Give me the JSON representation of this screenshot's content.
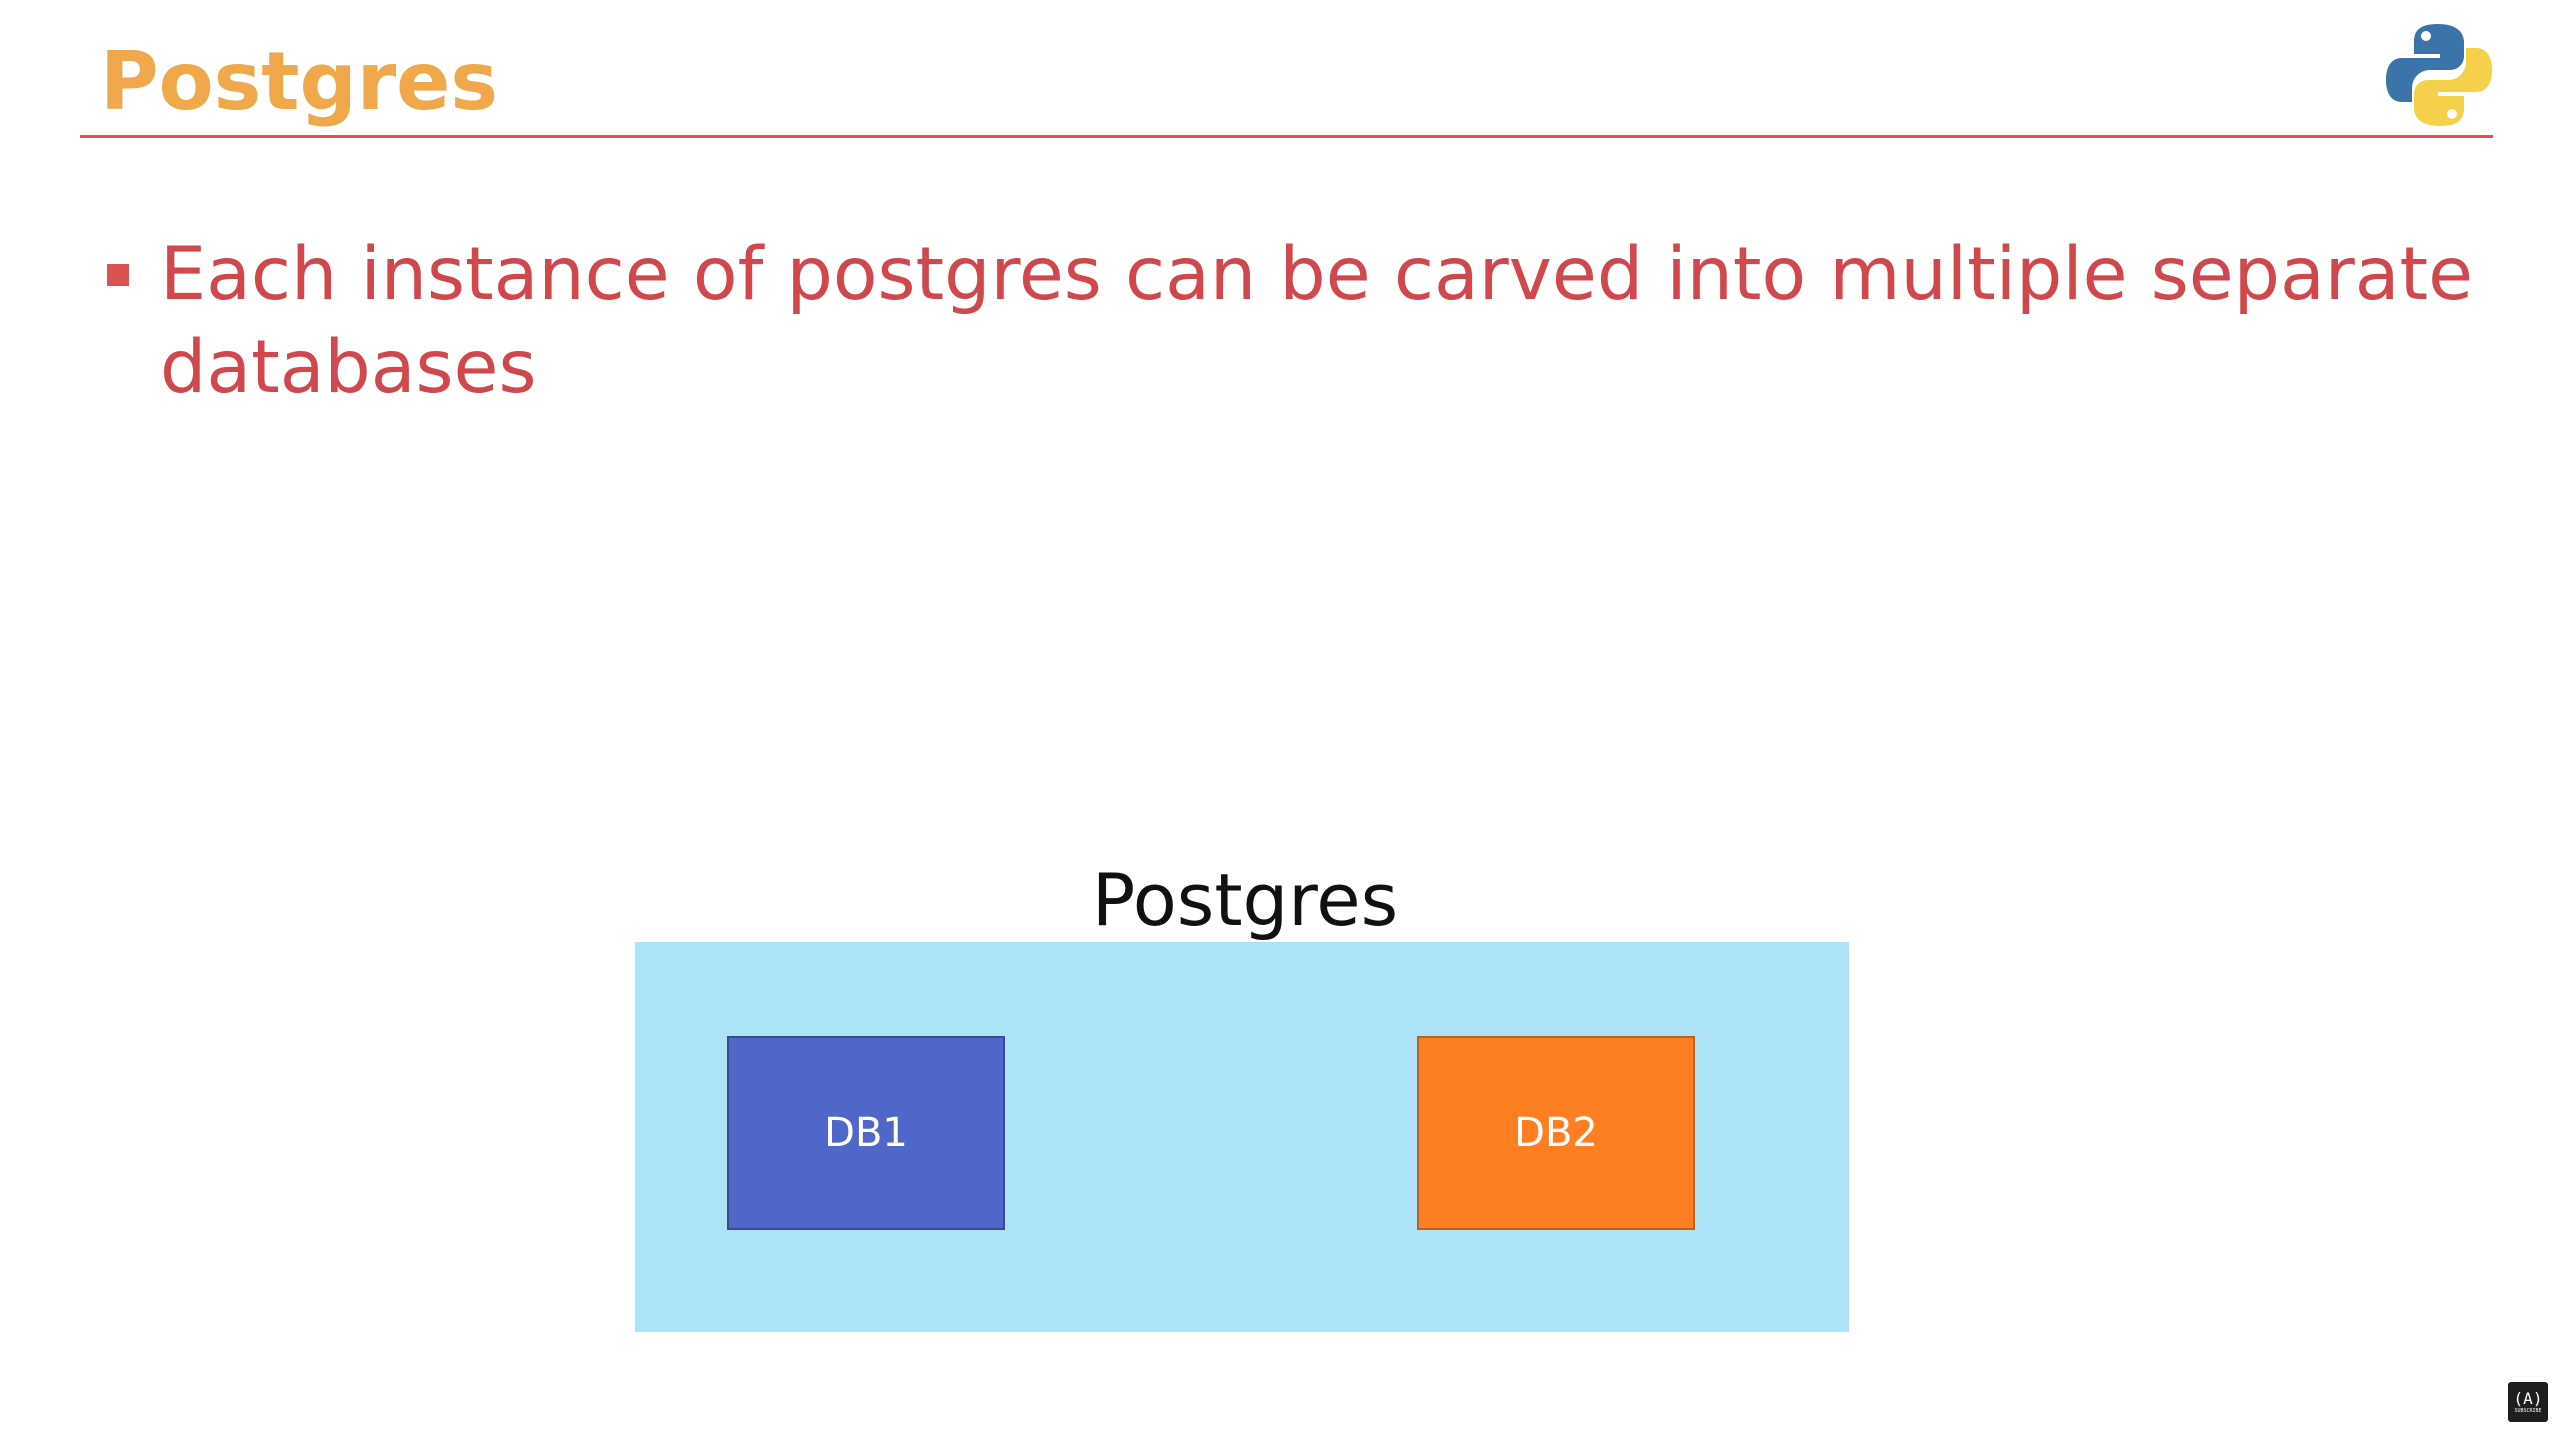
{
  "slide": {
    "title": "Postgres",
    "bullets": [
      {
        "text": "Each instance of postgres can be carved into multiple separate databases"
      }
    ]
  },
  "diagram": {
    "container_label": "Postgres",
    "databases": [
      {
        "label": "DB1",
        "color": "#4f67c9"
      },
      {
        "label": "DB2",
        "color": "#fd7f22"
      }
    ],
    "container_color": "#ade3f6"
  },
  "theme": {
    "title_color": "#efa84a",
    "text_color": "#d0474c",
    "rule_color": "#d9534f"
  },
  "icons": {
    "logo": "python-logo-icon",
    "badge": "channel-badge-icon"
  },
  "badge": {
    "glyph": "(A)",
    "sub": "SUBSCRIBE"
  }
}
